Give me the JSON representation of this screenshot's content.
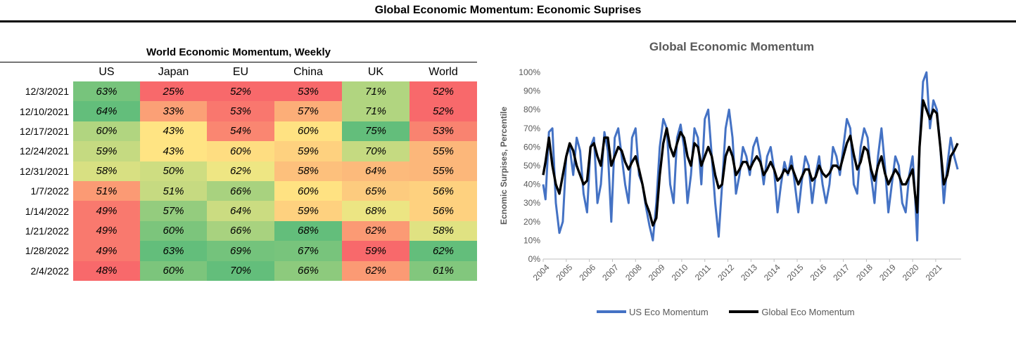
{
  "page_title": "Global Economic Momentum: Economic Suprises",
  "table": {
    "title": "World Economic Momentum, Weekly",
    "columns": [
      "US",
      "Japan",
      "EU",
      "China",
      "UK",
      "World"
    ],
    "rows": [
      {
        "date": "12/3/2021",
        "values": [
          "63%",
          "25%",
          "52%",
          "53%",
          "71%",
          "52%"
        ]
      },
      {
        "date": "12/10/2021",
        "values": [
          "64%",
          "33%",
          "53%",
          "57%",
          "71%",
          "52%"
        ]
      },
      {
        "date": "12/17/2021",
        "values": [
          "60%",
          "43%",
          "54%",
          "60%",
          "75%",
          "53%"
        ]
      },
      {
        "date": "12/24/2021",
        "values": [
          "59%",
          "43%",
          "60%",
          "59%",
          "70%",
          "55%"
        ]
      },
      {
        "date": "12/31/2021",
        "values": [
          "58%",
          "50%",
          "62%",
          "58%",
          "64%",
          "55%"
        ]
      },
      {
        "date": "1/7/2022",
        "values": [
          "51%",
          "51%",
          "66%",
          "60%",
          "65%",
          "56%"
        ]
      },
      {
        "date": "1/14/2022",
        "values": [
          "49%",
          "57%",
          "64%",
          "59%",
          "68%",
          "56%"
        ]
      },
      {
        "date": "1/21/2022",
        "values": [
          "49%",
          "60%",
          "66%",
          "68%",
          "62%",
          "58%"
        ]
      },
      {
        "date": "1/28/2022",
        "values": [
          "49%",
          "63%",
          "69%",
          "67%",
          "59%",
          "62%"
        ]
      },
      {
        "date": "2/4/2022",
        "values": [
          "48%",
          "60%",
          "70%",
          "66%",
          "62%",
          "61%"
        ]
      }
    ],
    "colors": {
      "low": "#f8696b",
      "mid": "#ffeb84",
      "high": "#63be7b"
    }
  },
  "chart_data": {
    "type": "line",
    "title": "Global Economic Momentum",
    "ylabel": "Ecnomic Surpises, Percentile",
    "xlabel": "",
    "ylim": [
      0,
      100
    ],
    "yticks": [
      "0%",
      "10%",
      "20%",
      "30%",
      "40%",
      "50%",
      "60%",
      "70%",
      "80%",
      "90%",
      "100%"
    ],
    "xlim": [
      2004,
      2022.1
    ],
    "xticks": [
      "2004",
      "2005",
      "2006",
      "2007",
      "2008",
      "2009",
      "2010",
      "2011",
      "2012",
      "2013",
      "2014",
      "2015",
      "2016",
      "2017",
      "2018",
      "2019",
      "2020",
      "2021"
    ],
    "series": [
      {
        "name": "US Eco Momentum",
        "color": "#4472c4",
        "x": [
          2004.0,
          2004.1,
          2004.25,
          2004.4,
          2004.55,
          2004.7,
          2004.85,
          2005.0,
          2005.15,
          2005.3,
          2005.45,
          2005.6,
          2005.75,
          2005.9,
          2006.05,
          2006.2,
          2006.35,
          2006.5,
          2006.65,
          2006.8,
          2006.95,
          2007.1,
          2007.25,
          2007.4,
          2007.55,
          2007.7,
          2007.85,
          2008.0,
          2008.15,
          2008.3,
          2008.45,
          2008.6,
          2008.75,
          2008.9,
          2009.05,
          2009.2,
          2009.35,
          2009.5,
          2009.65,
          2009.8,
          2009.95,
          2010.1,
          2010.25,
          2010.4,
          2010.55,
          2010.7,
          2010.85,
          2011.0,
          2011.15,
          2011.3,
          2011.45,
          2011.6,
          2011.75,
          2011.9,
          2012.05,
          2012.2,
          2012.35,
          2012.5,
          2012.65,
          2012.8,
          2012.95,
          2013.1,
          2013.25,
          2013.4,
          2013.55,
          2013.7,
          2013.85,
          2014.0,
          2014.15,
          2014.3,
          2014.45,
          2014.6,
          2014.75,
          2014.9,
          2015.05,
          2015.2,
          2015.35,
          2015.5,
          2015.65,
          2015.8,
          2015.95,
          2016.1,
          2016.25,
          2016.4,
          2016.55,
          2016.7,
          2016.85,
          2017.0,
          2017.15,
          2017.3,
          2017.45,
          2017.6,
          2017.75,
          2017.9,
          2018.05,
          2018.2,
          2018.35,
          2018.5,
          2018.65,
          2018.8,
          2018.95,
          2019.1,
          2019.25,
          2019.4,
          2019.55,
          2019.7,
          2019.85,
          2020.0,
          2020.1,
          2020.2,
          2020.3,
          2020.45,
          2020.6,
          2020.75,
          2020.9,
          2021.05,
          2021.2,
          2021.35,
          2021.5,
          2021.65,
          2021.8,
          2021.95
        ],
        "values": [
          40,
          32,
          68,
          70,
          30,
          14,
          20,
          55,
          60,
          45,
          65,
          58,
          35,
          25,
          60,
          65,
          30,
          40,
          68,
          58,
          20,
          65,
          70,
          55,
          40,
          30,
          65,
          70,
          45,
          40,
          28,
          18,
          10,
          30,
          60,
          75,
          70,
          40,
          30,
          65,
          72,
          60,
          30,
          45,
          70,
          65,
          40,
          75,
          80,
          55,
          30,
          12,
          40,
          70,
          80,
          65,
          35,
          45,
          60,
          55,
          45,
          60,
          65,
          55,
          40,
          55,
          60,
          48,
          25,
          40,
          52,
          45,
          55,
          40,
          25,
          42,
          55,
          50,
          30,
          45,
          55,
          40,
          30,
          40,
          60,
          55,
          45,
          60,
          75,
          70,
          40,
          35,
          60,
          70,
          65,
          45,
          30,
          55,
          70,
          50,
          25,
          40,
          55,
          50,
          30,
          25,
          45,
          55,
          35,
          10,
          60,
          95,
          100,
          70,
          85,
          80,
          60,
          30,
          50,
          65,
          55,
          48
        ]
      },
      {
        "name": "Global Eco Momentum",
        "color": "#000000",
        "x": [
          2004.0,
          2004.1,
          2004.25,
          2004.4,
          2004.55,
          2004.7,
          2004.85,
          2005.0,
          2005.15,
          2005.3,
          2005.45,
          2005.6,
          2005.75,
          2005.9,
          2006.05,
          2006.2,
          2006.35,
          2006.5,
          2006.65,
          2006.8,
          2006.95,
          2007.1,
          2007.25,
          2007.4,
          2007.55,
          2007.7,
          2007.85,
          2008.0,
          2008.15,
          2008.3,
          2008.45,
          2008.6,
          2008.75,
          2008.9,
          2009.05,
          2009.2,
          2009.35,
          2009.5,
          2009.65,
          2009.8,
          2009.95,
          2010.1,
          2010.25,
          2010.4,
          2010.55,
          2010.7,
          2010.85,
          2011.0,
          2011.15,
          2011.3,
          2011.45,
          2011.6,
          2011.75,
          2011.9,
          2012.05,
          2012.2,
          2012.35,
          2012.5,
          2012.65,
          2012.8,
          2012.95,
          2013.1,
          2013.25,
          2013.4,
          2013.55,
          2013.7,
          2013.85,
          2014.0,
          2014.15,
          2014.3,
          2014.45,
          2014.6,
          2014.75,
          2014.9,
          2015.05,
          2015.2,
          2015.35,
          2015.5,
          2015.65,
          2015.8,
          2015.95,
          2016.1,
          2016.25,
          2016.4,
          2016.55,
          2016.7,
          2016.85,
          2017.0,
          2017.15,
          2017.3,
          2017.45,
          2017.6,
          2017.75,
          2017.9,
          2018.05,
          2018.2,
          2018.35,
          2018.5,
          2018.65,
          2018.8,
          2018.95,
          2019.1,
          2019.25,
          2019.4,
          2019.55,
          2019.7,
          2019.85,
          2020.0,
          2020.1,
          2020.2,
          2020.3,
          2020.45,
          2020.6,
          2020.75,
          2020.9,
          2021.05,
          2021.2,
          2021.35,
          2021.5,
          2021.65,
          2021.8,
          2021.95
        ],
        "values": [
          45,
          52,
          65,
          50,
          40,
          35,
          45,
          55,
          62,
          58,
          50,
          45,
          40,
          42,
          60,
          62,
          55,
          50,
          65,
          65,
          50,
          55,
          60,
          58,
          52,
          48,
          52,
          55,
          48,
          40,
          30,
          25,
          18,
          22,
          45,
          62,
          70,
          60,
          55,
          62,
          68,
          65,
          55,
          50,
          62,
          60,
          50,
          55,
          60,
          55,
          45,
          38,
          40,
          55,
          60,
          55,
          45,
          48,
          52,
          52,
          48,
          52,
          55,
          52,
          45,
          48,
          52,
          48,
          42,
          44,
          48,
          46,
          50,
          45,
          40,
          44,
          48,
          48,
          42,
          44,
          50,
          46,
          44,
          46,
          50,
          50,
          48,
          55,
          62,
          66,
          56,
          48,
          52,
          60,
          58,
          48,
          42,
          50,
          55,
          46,
          40,
          44,
          48,
          45,
          40,
          40,
          44,
          48,
          35,
          25,
          60,
          85,
          80,
          75,
          80,
          78,
          60,
          40,
          45,
          55,
          58,
          62
        ]
      }
    ]
  }
}
